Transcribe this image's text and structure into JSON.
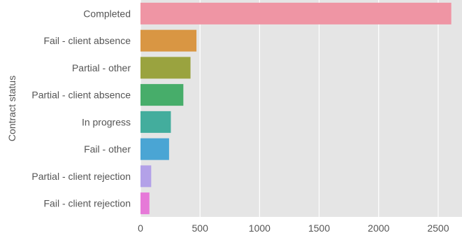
{
  "chart_data": {
    "type": "bar",
    "orientation": "horizontal",
    "categories": [
      "Completed",
      "Fail - client absence",
      "Partial - other",
      "Partial - client absence",
      "In progress",
      "Fail - other",
      "Partial - client rejection",
      "Fail - client rejection"
    ],
    "values": [
      2610,
      470,
      420,
      360,
      255,
      240,
      90,
      75
    ],
    "colors": [
      "#ef95a4",
      "#d99643",
      "#9aa33f",
      "#47ad6a",
      "#43ad9d",
      "#4aa5d4",
      "#b3a1e8",
      "#e679d8"
    ],
    "title": "",
    "xlabel": "",
    "ylabel": "Contract status",
    "xlim": [
      0,
      2700
    ],
    "xticks": [
      0,
      500,
      1000,
      1500,
      2000,
      2500
    ],
    "grid": true,
    "background": "#e5e5e5",
    "grid_color": "#ffffff"
  }
}
